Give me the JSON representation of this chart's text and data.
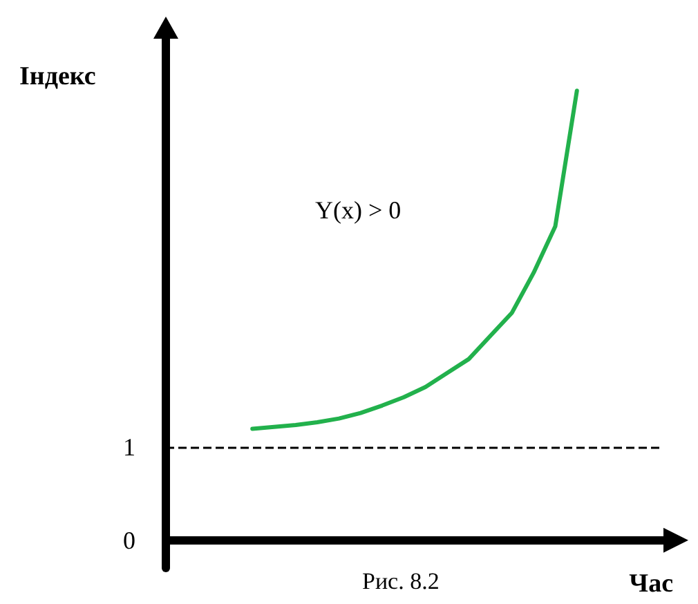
{
  "chart_data": {
    "type": "line",
    "xlabel": "Час",
    "ylabel": "Індекс",
    "annotations": [
      "Y(x) > 0",
      "Рис. 8.2"
    ],
    "categories": [
      null,
      null,
      null,
      null,
      null,
      null,
      null,
      null,
      null,
      null,
      null,
      null,
      null,
      null,
      null,
      null,
      null,
      null,
      null,
      null,
      null,
      null,
      null,
      null
    ],
    "series": [
      {
        "color": "#22b14c",
        "values": [
          null,
          null,
          null,
          null,
          1.2,
          1.22,
          1.24,
          1.27,
          1.31,
          1.37,
          1.45,
          1.54,
          1.65,
          1.8,
          1.95,
          2.2,
          2.45,
          2.88,
          3.38,
          4.84,
          null,
          null,
          null,
          null
        ]
      }
    ],
    "ylim": [
      -0.3,
      5.4
    ],
    "yticks": [
      0,
      1
    ],
    "ref_lines": [
      {
        "axis": "y",
        "value": 1,
        "color": "#000000",
        "line_style": "dashed"
      }
    ],
    "tick_labels": "y",
    "grid": false,
    "marker": "none",
    "line_style": "solid"
  }
}
